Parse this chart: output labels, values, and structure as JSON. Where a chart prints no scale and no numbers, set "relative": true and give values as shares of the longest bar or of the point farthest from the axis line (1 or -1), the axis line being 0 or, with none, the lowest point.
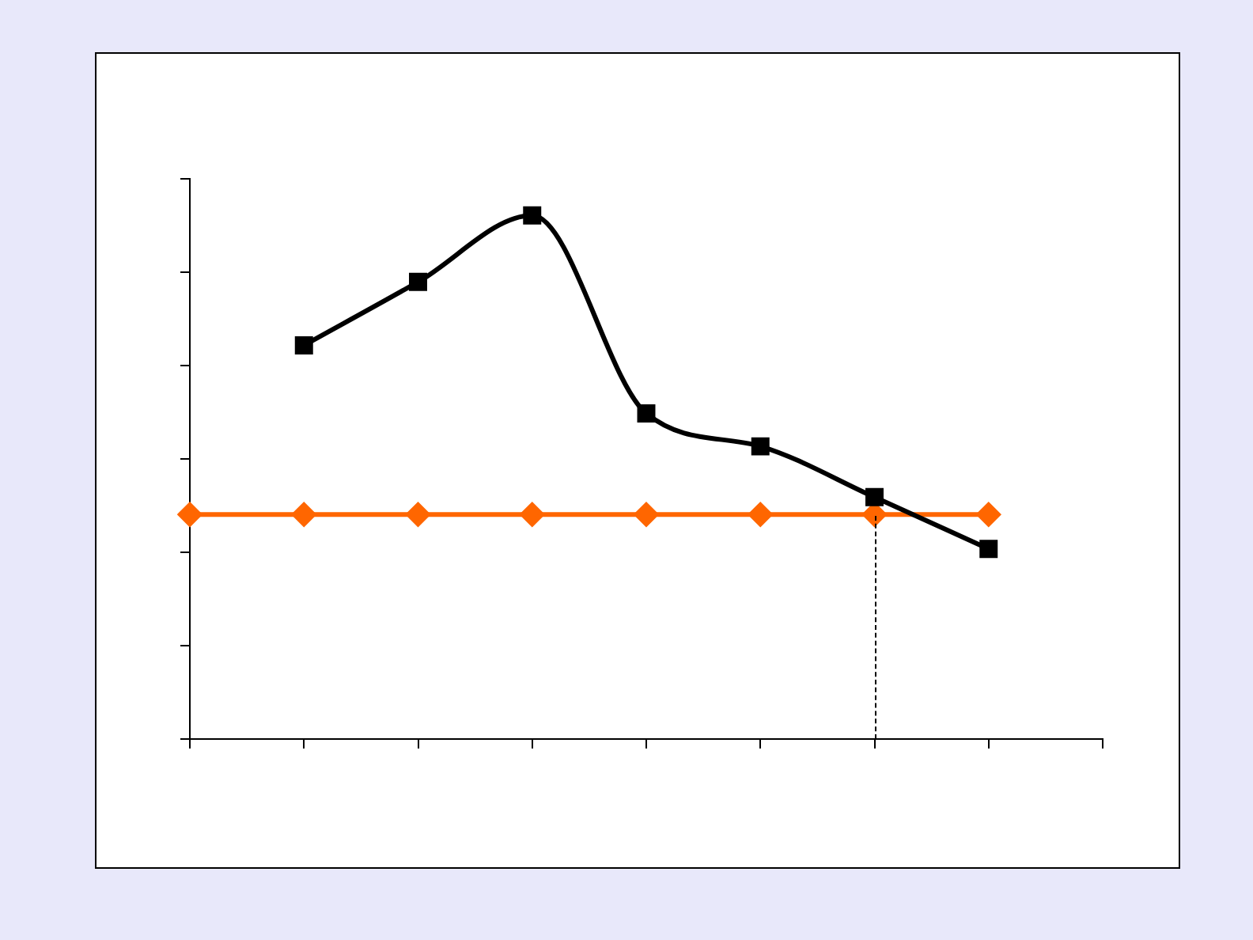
{
  "chart_data": {
    "type": "line",
    "relative": true,
    "categories": [
      null,
      null,
      null,
      null,
      null,
      null,
      null,
      null,
      null
    ],
    "series": [
      {
        "color": "#000000",
        "marker": "square",
        "values": [
          null,
          0.752,
          0.873,
          1,
          0.622,
          0.559,
          0.462,
          0.363,
          null
        ]
      },
      {
        "color": "#ff6600",
        "marker": "diamond",
        "values": [
          0.429,
          0.429,
          0.429,
          0.429,
          0.429,
          0.429,
          0.429,
          0.429,
          null
        ]
      }
    ],
    "grid": false,
    "legend": false
  }
}
